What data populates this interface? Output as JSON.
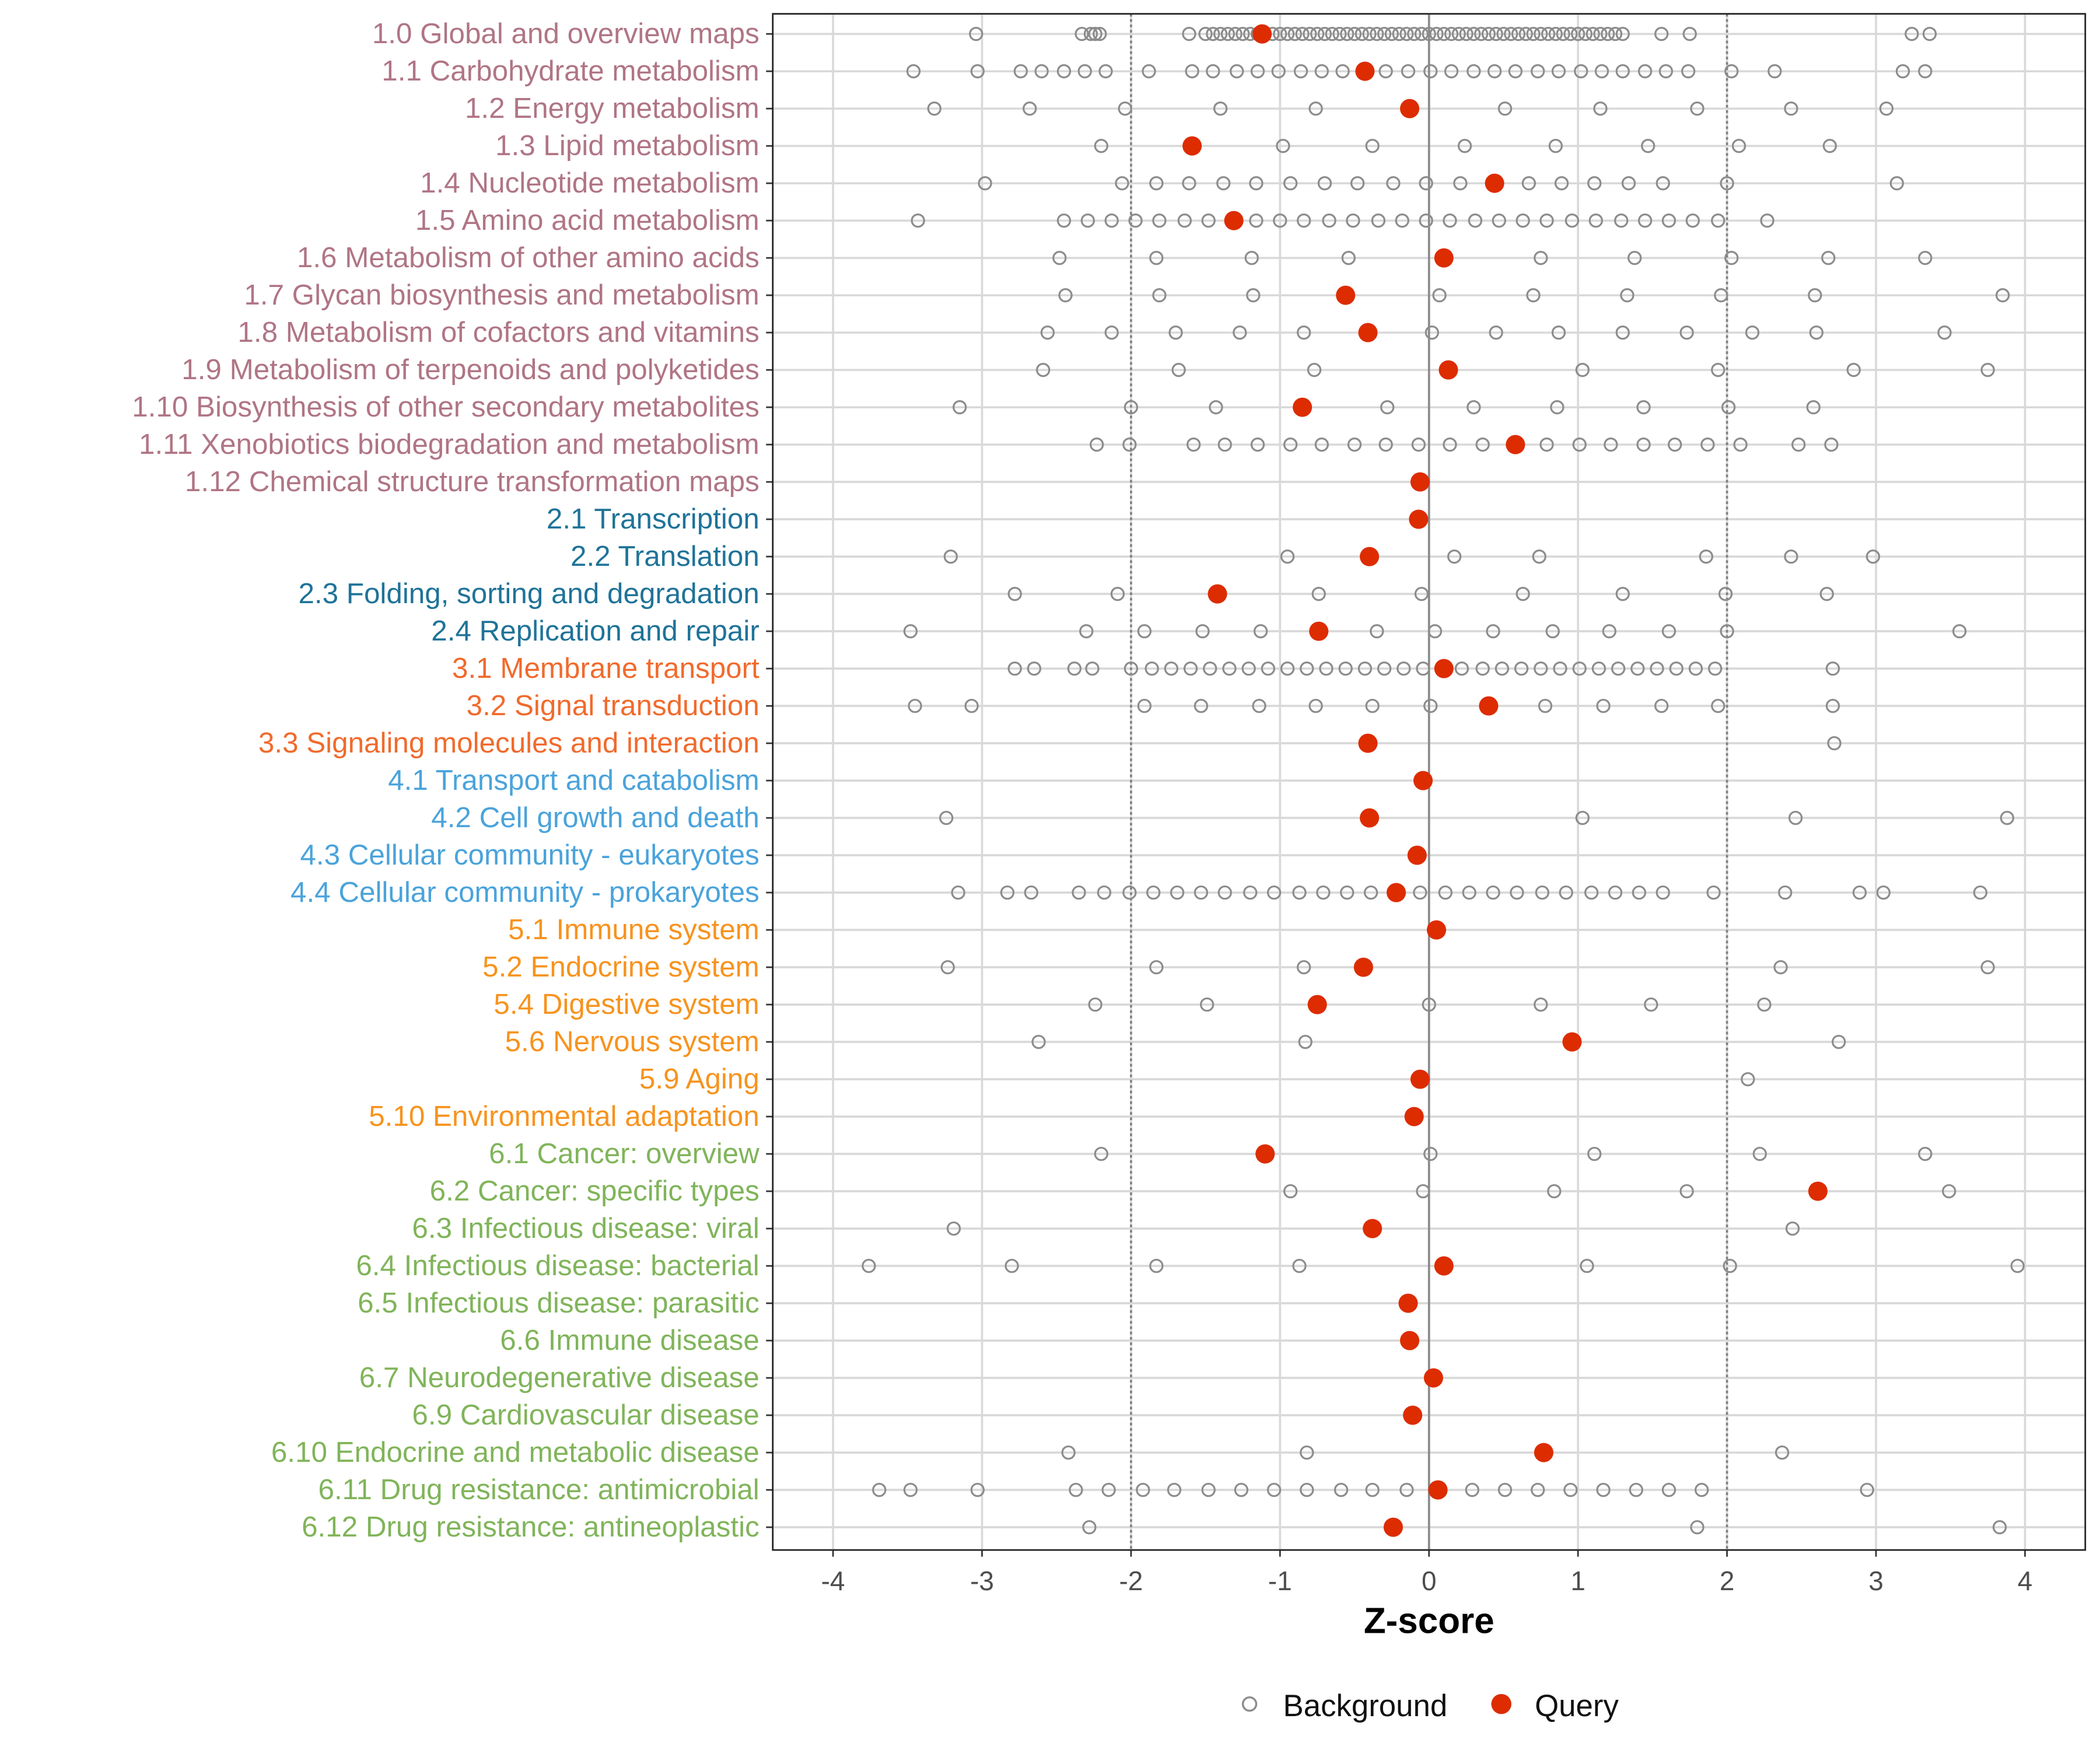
{
  "chart_data": {
    "type": "scatter",
    "xlabel": "Z-score",
    "xlim": [
      -4.5,
      4.4
    ],
    "xticks": [
      -4,
      -3,
      -2,
      -1,
      0,
      1,
      2,
      3,
      4
    ],
    "reference_lines": {
      "dotted": [
        -2,
        2
      ],
      "solid": [
        0
      ]
    },
    "grid": true,
    "legend": {
      "position": "bottom",
      "entries": [
        "Background",
        "Query"
      ]
    },
    "colors": {
      "background": "#8c8c8c",
      "query": "#dd2c00",
      "group1": "#b07585",
      "group2": "#1f7398",
      "group3": "#f16a2c",
      "group4": "#4aa3db",
      "group5": "#f7931e",
      "group6": "#80b45a"
    },
    "categories": [
      {
        "label": "1.0 Global and overview maps",
        "group": 1,
        "query": -1.12,
        "background": [
          -3.04,
          -2.33,
          -2.27,
          -2.24,
          -2.21,
          -1.61,
          -1.5,
          -1.45,
          -1.4,
          -1.35,
          -1.3,
          -1.25,
          -1.2,
          -1.15,
          -1.05,
          -1.0,
          -0.95,
          -0.9,
          -0.85,
          -0.8,
          -0.75,
          -0.7,
          -0.65,
          -0.6,
          -0.55,
          -0.5,
          -0.45,
          -0.4,
          -0.35,
          -0.3,
          -0.25,
          -0.2,
          -0.15,
          -0.1,
          -0.05,
          0,
          0.05,
          0.1,
          0.15,
          0.2,
          0.25,
          0.3,
          0.35,
          0.4,
          0.45,
          0.5,
          0.55,
          0.6,
          0.65,
          0.7,
          0.75,
          0.8,
          0.85,
          0.9,
          0.95,
          1.0,
          1.05,
          1.1,
          1.15,
          1.2,
          1.25,
          1.3,
          1.56,
          1.75,
          3.24,
          3.36
        ]
      },
      {
        "label": "1.1 Carbohydrate metabolism",
        "group": 1,
        "query": -0.43,
        "background": [
          -3.46,
          -3.03,
          -2.74,
          -2.6,
          -2.45,
          -2.31,
          -2.17,
          -1.88,
          -1.59,
          -1.45,
          -1.29,
          -1.15,
          -1.01,
          -0.86,
          -0.72,
          -0.58,
          -0.29,
          -0.14,
          0.01,
          0.15,
          0.3,
          0.44,
          0.58,
          0.73,
          0.87,
          1.02,
          1.16,
          1.3,
          1.45,
          1.59,
          1.74,
          2.03,
          2.32,
          3.18,
          3.33
        ]
      },
      {
        "label": "1.2 Energy metabolism",
        "group": 1,
        "query": -0.13,
        "background": [
          -3.32,
          -2.68,
          -2.04,
          -1.4,
          -0.76,
          0.51,
          1.15,
          1.8,
          2.43,
          3.07
        ]
      },
      {
        "label": "1.3 Lipid metabolism",
        "group": 1,
        "query": -1.59,
        "background": [
          -2.2,
          -0.98,
          -0.38,
          0.24,
          0.85,
          1.47,
          2.08,
          2.69
        ]
      },
      {
        "label": "1.4 Nucleotide metabolism",
        "group": 1,
        "query": 0.44,
        "background": [
          -2.98,
          -2.06,
          -1.83,
          -1.61,
          -1.38,
          -1.16,
          -0.93,
          -0.7,
          -0.48,
          -0.24,
          -0.02,
          0.21,
          0.67,
          0.89,
          1.11,
          1.34,
          1.57,
          2.0,
          3.14
        ]
      },
      {
        "label": "1.5 Amino acid metabolism",
        "group": 1,
        "query": -1.31,
        "background": [
          -3.43,
          -2.45,
          -2.29,
          -2.13,
          -1.97,
          -1.81,
          -1.64,
          -1.48,
          -1.16,
          -1.0,
          -0.84,
          -0.67,
          -0.51,
          -0.34,
          -0.18,
          -0.02,
          0.14,
          0.31,
          0.47,
          0.63,
          0.79,
          0.96,
          1.12,
          1.29,
          1.45,
          1.61,
          1.77,
          1.94,
          2.27
        ]
      },
      {
        "label": "1.6 Metabolism of other amino acids",
        "group": 1,
        "query": 0.1,
        "background": [
          -2.48,
          -1.83,
          -1.19,
          -0.54,
          0.75,
          1.38,
          2.03,
          2.68,
          3.33
        ]
      },
      {
        "label": "1.7 Glycan biosynthesis and metabolism",
        "group": 1,
        "query": -0.56,
        "background": [
          -2.44,
          -1.81,
          -1.18,
          0.07,
          0.7,
          1.33,
          1.96,
          2.59,
          3.85
        ]
      },
      {
        "label": "1.8 Metabolism of cofactors and vitamins",
        "group": 1,
        "query": -0.41,
        "background": [
          -2.56,
          -2.13,
          -1.7,
          -1.27,
          -0.84,
          0.02,
          0.45,
          0.87,
          1.3,
          1.73,
          2.17,
          2.6,
          3.46
        ]
      },
      {
        "label": "1.9 Metabolism of terpenoids and polyketides",
        "group": 1,
        "query": 0.13,
        "background": [
          -2.59,
          -1.68,
          -0.77,
          1.03,
          1.94,
          2.85,
          3.75
        ]
      },
      {
        "label": "1.10 Biosynthesis of other secondary metabolites",
        "group": 1,
        "query": -0.85,
        "background": [
          -3.15,
          -2.0,
          -1.43,
          -0.28,
          0.3,
          0.86,
          1.44,
          2.01,
          2.58
        ]
      },
      {
        "label": "1.11 Xenobiotics biodegradation and metabolism",
        "group": 1,
        "query": 0.58,
        "background": [
          -2.23,
          -2.01,
          -1.58,
          -1.37,
          -1.15,
          -0.93,
          -0.72,
          -0.5,
          -0.29,
          -0.07,
          0.14,
          0.36,
          0.79,
          1.01,
          1.22,
          1.44,
          1.65,
          1.87,
          2.09,
          2.48,
          2.7
        ]
      },
      {
        "label": "1.12 Chemical structure transformation maps",
        "group": 1,
        "query": -0.06,
        "background": []
      },
      {
        "label": "2.1 Transcription",
        "group": 2,
        "query": -0.07,
        "background": []
      },
      {
        "label": "2.2 Translation",
        "group": 2,
        "query": -0.4,
        "background": [
          -3.21,
          -0.95,
          0.17,
          0.74,
          1.86,
          2.43,
          2.98
        ]
      },
      {
        "label": "2.3 Folding, sorting and degradation",
        "group": 2,
        "query": -1.42,
        "background": [
          -2.78,
          -2.09,
          -0.74,
          -0.05,
          0.63,
          1.3,
          1.99,
          2.67
        ]
      },
      {
        "label": "2.4 Replication and repair",
        "group": 2,
        "query": -0.74,
        "background": [
          -3.48,
          -2.3,
          -1.91,
          -1.52,
          -1.13,
          -0.35,
          0.04,
          0.43,
          0.83,
          1.21,
          1.61,
          2.0,
          3.56
        ]
      },
      {
        "label": "3.1 Membrane transport",
        "group": 3,
        "query": 0.1,
        "background": [
          -2.78,
          -2.65,
          -2.38,
          -2.26,
          -2.0,
          -1.86,
          -1.73,
          -1.6,
          -1.47,
          -1.34,
          -1.21,
          -1.08,
          -0.95,
          -0.82,
          -0.69,
          -0.56,
          -0.43,
          -0.3,
          -0.17,
          -0.04,
          0.22,
          0.36,
          0.49,
          0.62,
          0.75,
          0.88,
          1.01,
          1.14,
          1.27,
          1.4,
          1.53,
          1.66,
          1.79,
          1.92,
          2.71
        ]
      },
      {
        "label": "3.2 Signal transduction",
        "group": 3,
        "query": 0.4,
        "background": [
          -3.45,
          -3.07,
          -1.91,
          -1.53,
          -1.14,
          -0.76,
          -0.38,
          0.01,
          0.78,
          1.17,
          1.56,
          1.94,
          2.71
        ]
      },
      {
        "label": "3.3 Signaling molecules and interaction",
        "group": 3,
        "query": -0.41,
        "background": [
          2.72
        ]
      },
      {
        "label": "4.1 Transport and catabolism",
        "group": 4,
        "query": -0.04,
        "background": []
      },
      {
        "label": "4.2 Cell growth and death",
        "group": 4,
        "query": -0.4,
        "background": [
          -3.24,
          1.03,
          2.46,
          3.88
        ]
      },
      {
        "label": "4.3 Cellular community - eukaryotes",
        "group": 4,
        "query": -0.08,
        "background": []
      },
      {
        "label": "4.4 Cellular community - prokaryotes",
        "group": 4,
        "query": -0.22,
        "background": [
          -3.16,
          -2.83,
          -2.67,
          -2.35,
          -2.18,
          -2.01,
          -1.85,
          -1.69,
          -1.53,
          -1.37,
          -1.2,
          -1.04,
          -0.87,
          -0.71,
          -0.55,
          -0.39,
          -0.06,
          0.11,
          0.27,
          0.43,
          0.59,
          0.76,
          0.92,
          1.09,
          1.25,
          1.41,
          1.57,
          1.91,
          2.39,
          2.89,
          3.05,
          3.7
        ]
      },
      {
        "label": "5.1 Immune system",
        "group": 5,
        "query": 0.05,
        "background": []
      },
      {
        "label": "5.2 Endocrine system",
        "group": 5,
        "query": -0.44,
        "background": [
          -3.23,
          -1.83,
          -0.84,
          2.36,
          3.75
        ]
      },
      {
        "label": "5.4 Digestive system",
        "group": 5,
        "query": -0.75,
        "background": [
          -2.24,
          -1.49,
          0.0,
          0.75,
          1.49,
          2.25
        ]
      },
      {
        "label": "5.6 Nervous system",
        "group": 5,
        "query": 0.96,
        "background": [
          -2.62,
          -0.83,
          2.75
        ]
      },
      {
        "label": "5.9 Aging",
        "group": 5,
        "query": -0.06,
        "background": [
          2.14
        ]
      },
      {
        "label": "5.10 Environmental adaptation",
        "group": 5,
        "query": -0.1,
        "background": []
      },
      {
        "label": "6.1 Cancer: overview",
        "group": 6,
        "query": -1.1,
        "background": [
          -2.2,
          0.01,
          1.11,
          2.22,
          3.33
        ]
      },
      {
        "label": "6.2 Cancer: specific types",
        "group": 6,
        "query": 2.61,
        "background": [
          -0.93,
          -0.04,
          0.84,
          1.73,
          3.49
        ]
      },
      {
        "label": "6.3 Infectious disease: viral",
        "group": 6,
        "query": -0.38,
        "background": [
          -3.19,
          2.44
        ]
      },
      {
        "label": "6.4 Infectious disease: bacterial",
        "group": 6,
        "query": 0.1,
        "background": [
          -3.76,
          -2.8,
          -1.83,
          -0.87,
          1.06,
          2.02,
          3.95
        ]
      },
      {
        "label": "6.5 Infectious disease: parasitic",
        "group": 6,
        "query": -0.14,
        "background": []
      },
      {
        "label": "6.6 Immune disease",
        "group": 6,
        "query": -0.13,
        "background": []
      },
      {
        "label": "6.7 Neurodegenerative disease",
        "group": 6,
        "query": 0.03,
        "background": []
      },
      {
        "label": "6.9 Cardiovascular disease",
        "group": 6,
        "query": -0.11,
        "background": []
      },
      {
        "label": "6.10 Endocrine and metabolic disease",
        "group": 6,
        "query": 0.77,
        "background": [
          -2.42,
          -0.82,
          2.37
        ]
      },
      {
        "label": "6.11 Drug resistance: antimicrobial",
        "group": 6,
        "query": 0.06,
        "background": [
          -3.69,
          -3.48,
          -3.03,
          -2.37,
          -2.15,
          -1.92,
          -1.71,
          -1.48,
          -1.26,
          -1.04,
          -0.82,
          -0.59,
          -0.38,
          -0.15,
          0.29,
          0.51,
          0.73,
          0.95,
          1.17,
          1.39,
          1.61,
          1.83,
          2.94
        ]
      },
      {
        "label": "6.12 Drug resistance: antineoplastic",
        "group": 6,
        "query": -0.24,
        "background": [
          -2.28,
          1.8,
          3.83
        ]
      }
    ]
  }
}
